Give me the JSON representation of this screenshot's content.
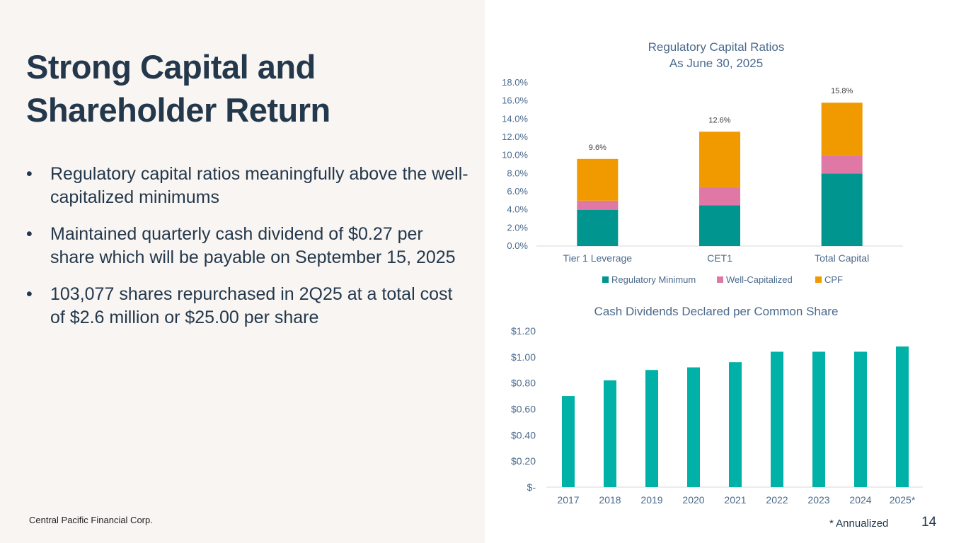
{
  "slide": {
    "title_lines": [
      "Strong Capital and",
      "Shareholder Return"
    ],
    "bullets": [
      "Regulatory capital ratios meaningfully above the well-capitalized minimums",
      "Maintained quarterly cash dividend of $0.27 per share which will be payable on September 15, 2025",
      "103,077 shares repurchased in 2Q25 at a total cost of $2.6 million or $25.00 per share"
    ],
    "bullet_symbol": "•",
    "company": "Central Pacific Financial Corp.",
    "footnote": "* Annualized",
    "page_number": "14"
  },
  "colors": {
    "title": "#24384c",
    "regulatory_minimum": "#00958f",
    "well_capitalized": "#df78a4",
    "cpf": "#f09a00",
    "dividend_bar": "#00b1a8",
    "axis_text": "#4a6a8c"
  },
  "chart_data": [
    {
      "type": "bar",
      "stacked": true,
      "title": "Regulatory Capital Ratios",
      "subtitle": "As June 30, 2025",
      "categories": [
        "Tier 1 Leverage",
        "CET1",
        "Total Capital"
      ],
      "series": [
        {
          "name": "Regulatory Minimum",
          "values": [
            4.0,
            4.5,
            8.0
          ]
        },
        {
          "name": "Well-Capitalized",
          "values": [
            1.0,
            2.0,
            2.0
          ]
        },
        {
          "name": "CPF",
          "values": [
            4.6,
            6.1,
            5.8
          ]
        }
      ],
      "totals": [
        9.6,
        12.6,
        15.8
      ],
      "total_labels": [
        "9.6%",
        "12.6%",
        "15.8%"
      ],
      "ylim": [
        0,
        18
      ],
      "yticks": [
        0,
        2,
        4,
        6,
        8,
        10,
        12,
        14,
        16,
        18
      ],
      "ytick_labels": [
        "0.0%",
        "2.0%",
        "4.0%",
        "6.0%",
        "8.0%",
        "10.0%",
        "12.0%",
        "14.0%",
        "16.0%",
        "18.0%"
      ],
      "legend": "bottom",
      "grid": false
    },
    {
      "type": "bar",
      "title": "Cash Dividends Declared per Common Share",
      "categories": [
        "2017",
        "2018",
        "2019",
        "2020",
        "2021",
        "2022",
        "2023",
        "2024",
        "2025*"
      ],
      "values": [
        0.7,
        0.82,
        0.9,
        0.92,
        0.96,
        1.04,
        1.04,
        1.04,
        1.08
      ],
      "ylim": [
        0,
        1.2
      ],
      "yticks": [
        0,
        0.2,
        0.4,
        0.6,
        0.8,
        1.0,
        1.2
      ],
      "ytick_labels": [
        "$-",
        "$0.20",
        "$0.40",
        "$0.60",
        "$0.80",
        "$1.00",
        "$1.20"
      ],
      "legend": "none",
      "grid": false
    }
  ]
}
